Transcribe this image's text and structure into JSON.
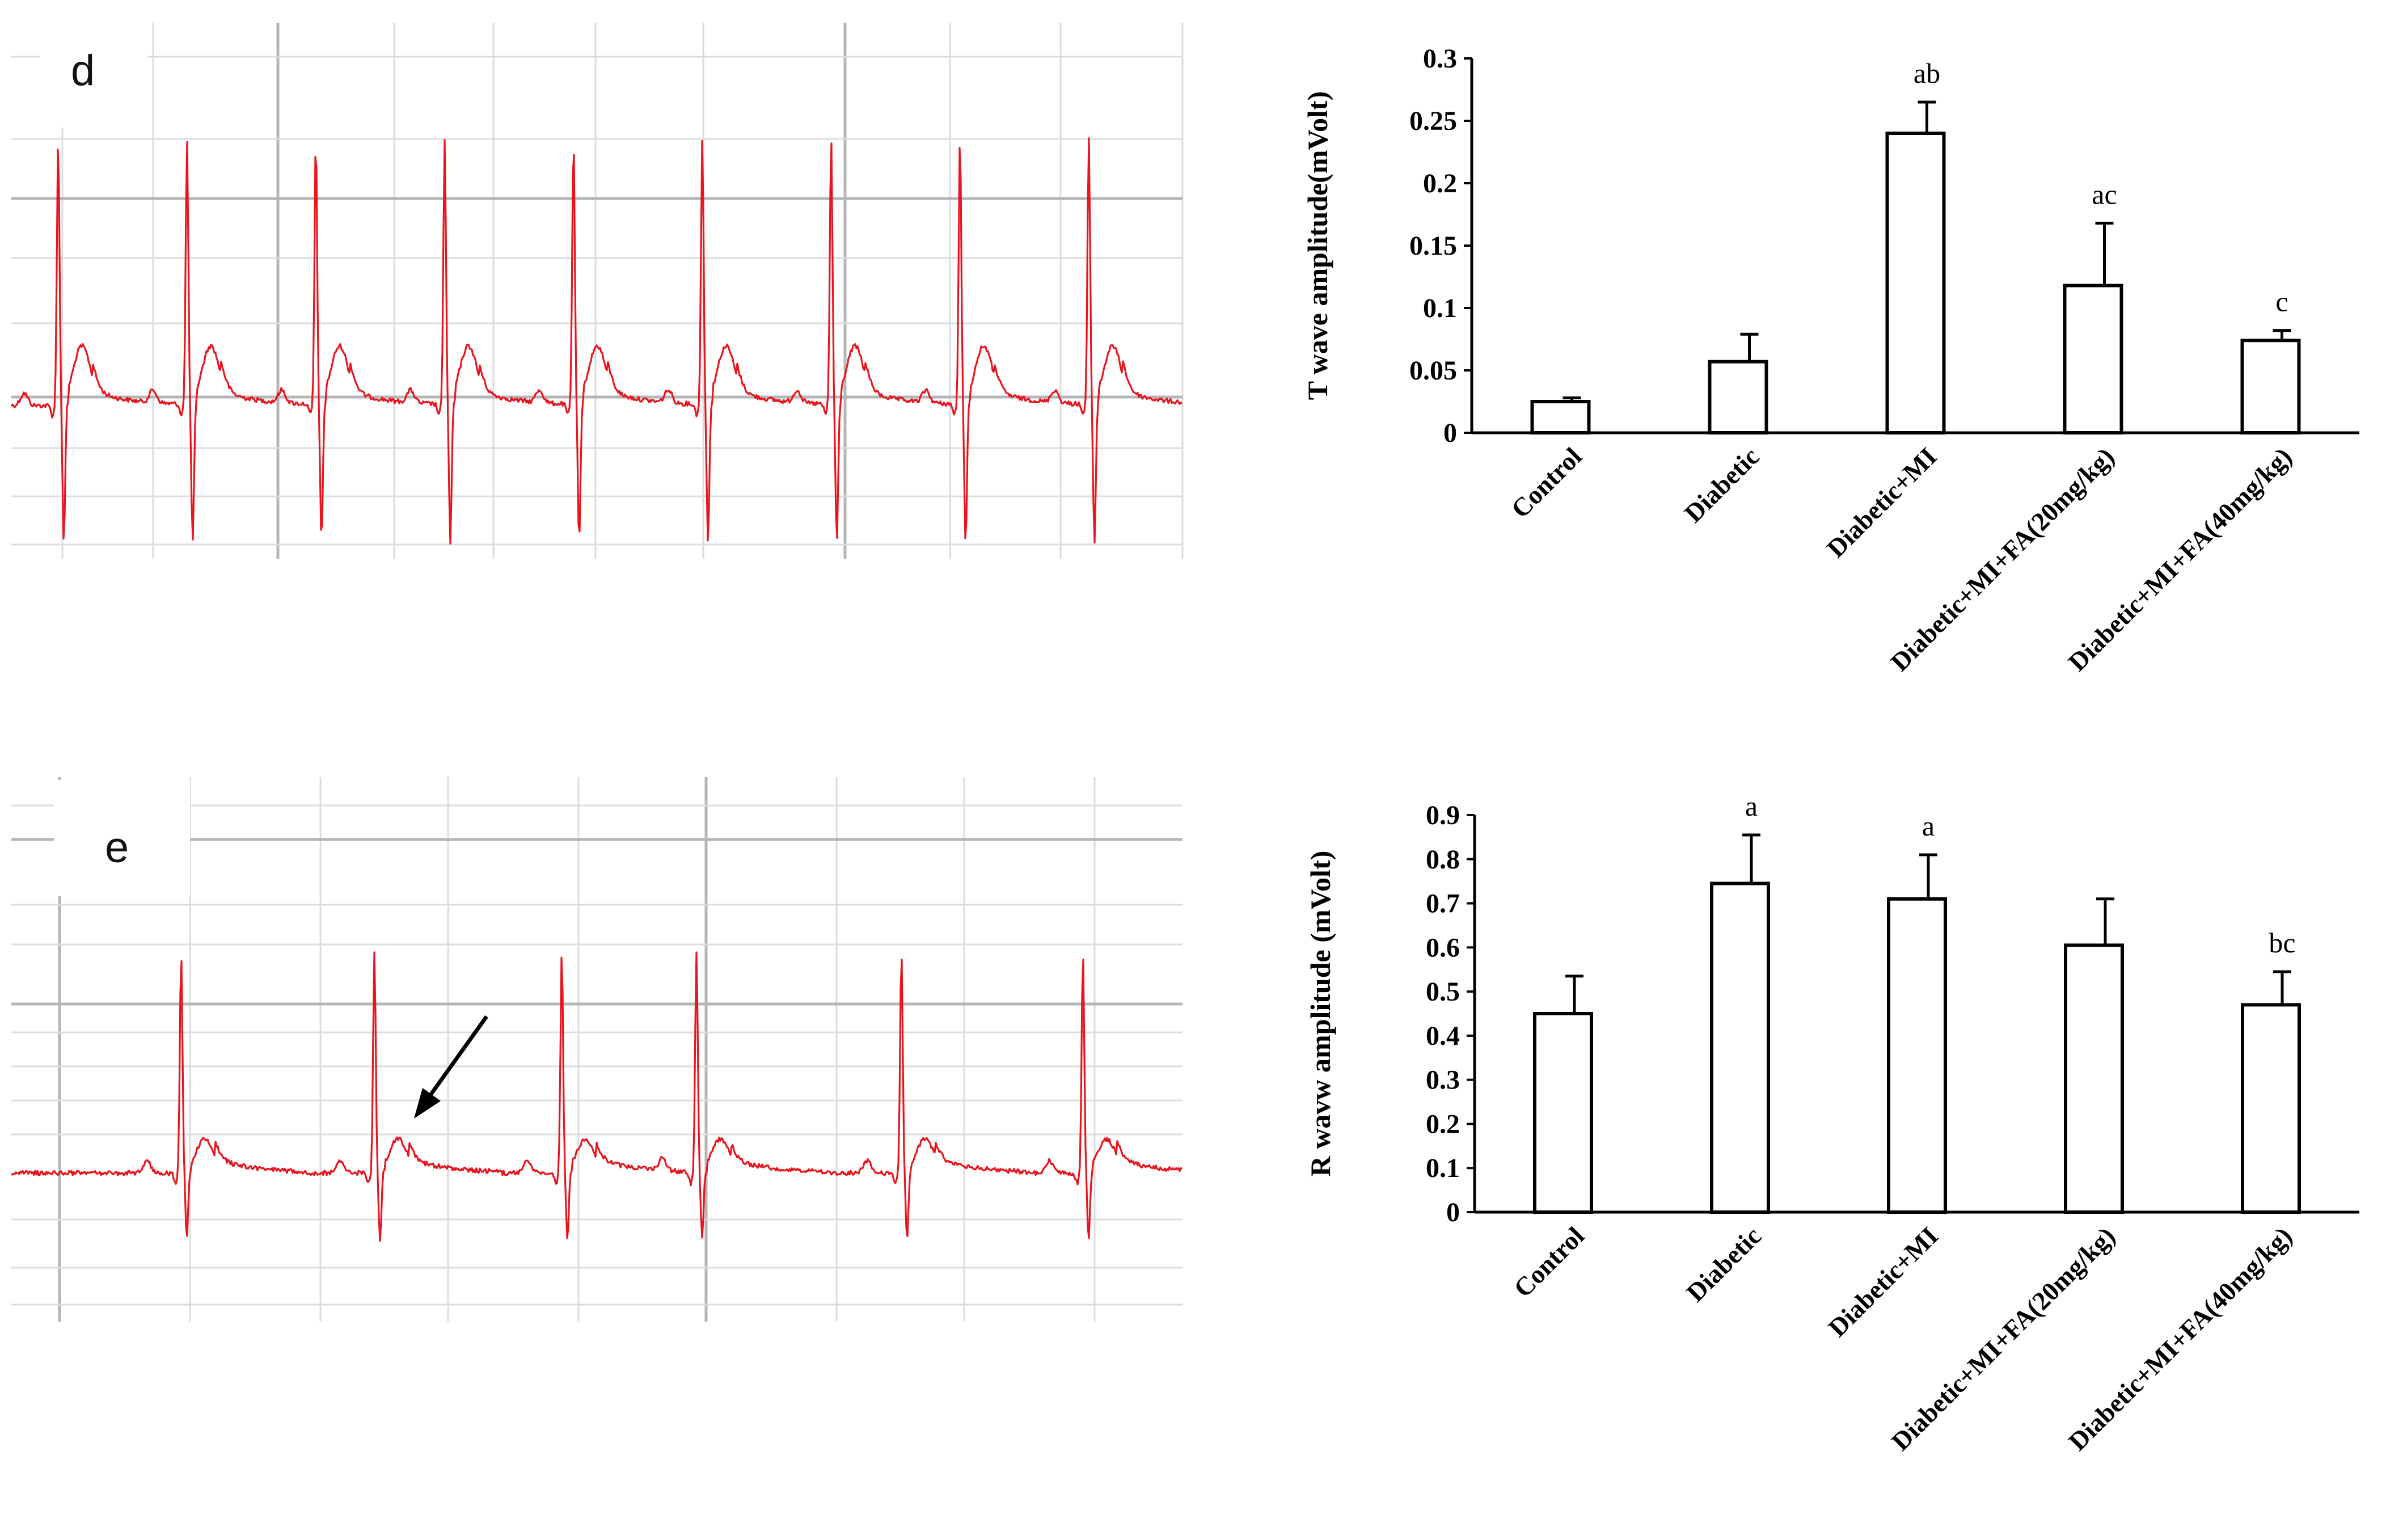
{
  "colors": {
    "ecg_trace": "#e8141e",
    "grid_minor": "#dcdcdc",
    "grid_major": "#b5b5b5",
    "bar_fill": "#ffffff",
    "bar_stroke": "#000000",
    "axis": "#000000",
    "arrow": "#000000"
  },
  "ecg_panels": [
    {
      "id": "d",
      "label": "d",
      "arrow": false,
      "beats": [
        0.04,
        0.15,
        0.26,
        0.37,
        0.48,
        0.59,
        0.7,
        0.81,
        0.92
      ],
      "baseline_drift": 0.0
    },
    {
      "id": "e",
      "label": "e",
      "arrow": true,
      "beats": [
        0.145,
        0.31,
        0.47,
        0.585,
        0.76,
        0.915
      ],
      "baseline_drift": 0.0
    }
  ],
  "chart_data": [
    {
      "type": "bar",
      "title": "",
      "xlabel": "",
      "ylabel": "T wave amplitude(mVolt)",
      "ylim": [
        0,
        0.3
      ],
      "ytick_labels": [
        "0",
        "0.05",
        "0.1",
        "0.15",
        "0.2",
        "0.25",
        "0.3"
      ],
      "ytick_values": [
        0,
        0.05,
        0.1,
        0.15,
        0.2,
        0.25,
        0.3
      ],
      "categories": [
        "Control",
        "Diabetic",
        "Diabetic+MI",
        "Diabetic+MI+FA(20mg/kg)",
        "Diabetic+MI+FA(40mg/kg)"
      ],
      "values": [
        0.025,
        0.057,
        0.24,
        0.118,
        0.074
      ],
      "errors": [
        0.003,
        0.022,
        0.025,
        0.05,
        0.008
      ],
      "annotations": [
        "",
        "",
        "ab",
        "ac",
        "c"
      ],
      "grid": false,
      "legend": "none"
    },
    {
      "type": "bar",
      "title": "",
      "xlabel": "",
      "ylabel": "R wavw amplitude (mVolt)",
      "ylim": [
        0,
        0.9
      ],
      "ytick_labels": [
        "0",
        "0.1",
        "0.2",
        "0.3",
        "0.4",
        "0.5",
        "0.6",
        "0.7",
        "0.8",
        "0.9"
      ],
      "ytick_values": [
        0,
        0.1,
        0.2,
        0.3,
        0.4,
        0.5,
        0.6,
        0.7,
        0.8,
        0.9
      ],
      "categories": [
        "Control",
        "Diabetic",
        "Diabetic+MI",
        "Diabetic+MI+FA(20mg/kg)",
        "Diabetic+MI+FA(40mg/kg)"
      ],
      "values": [
        0.45,
        0.745,
        0.71,
        0.605,
        0.47
      ],
      "errors": [
        0.085,
        0.11,
        0.1,
        0.105,
        0.075
      ],
      "annotations": [
        "",
        "a",
        "a",
        "",
        "bc"
      ],
      "grid": false,
      "legend": "none"
    }
  ]
}
